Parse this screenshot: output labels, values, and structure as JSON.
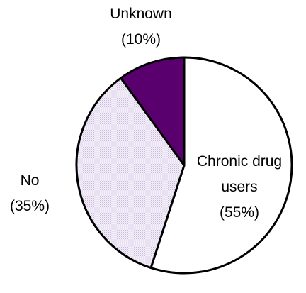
{
  "chart_data": {
    "type": "pie",
    "title": "",
    "slices": [
      {
        "label_line1": "Chronic drug",
        "label_line2": "users",
        "label_pct": "(55%)",
        "value": 55,
        "color": "#ffffff"
      },
      {
        "label_line1": "No",
        "label_line2": "",
        "label_pct": "(35%)",
        "value": 35,
        "color": "#ece4f4"
      },
      {
        "label_line1": "Unknown",
        "label_line2": "",
        "label_pct": "(10%)",
        "value": 10,
        "color": "#5a006e"
      }
    ],
    "start_angle_deg": 0,
    "direction": "clockwise",
    "outline_color": "#000000"
  }
}
